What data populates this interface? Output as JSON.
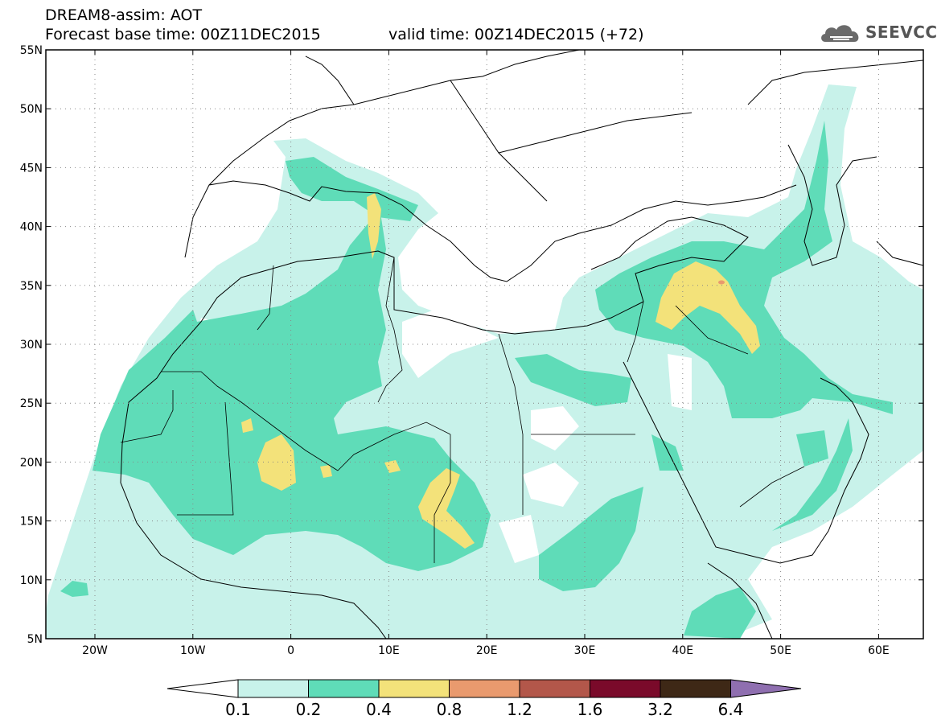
{
  "header": {
    "line1": "DREAM8-assim: AOT",
    "base_time_label": "Forecast base time: 00Z11DEC2015",
    "valid_time_label": "valid time: 00Z14DEC2015 (+72)"
  },
  "logo": {
    "text": "SEEVCCC",
    "icon": "cloud-icon"
  },
  "map": {
    "lat_labels": [
      "55N",
      "50N",
      "45N",
      "40N",
      "35N",
      "30N",
      "25N",
      "20N",
      "15N",
      "10N",
      "5N"
    ],
    "lon_labels": [
      "20W",
      "10W",
      "0",
      "10E",
      "20E",
      "30E",
      "40E",
      "50E",
      "60E"
    ]
  },
  "colorbar": {
    "labels": [
      "0.1",
      "0.2",
      "0.4",
      "0.8",
      "1.2",
      "1.6",
      "3.2",
      "6.4"
    ],
    "colors": [
      "#c8f2ea",
      "#5fdcb8",
      "#f3e27a",
      "#e99a6e",
      "#b3574a",
      "#7a0a2a",
      "#3e2816",
      "#8f6fb0"
    ]
  }
}
